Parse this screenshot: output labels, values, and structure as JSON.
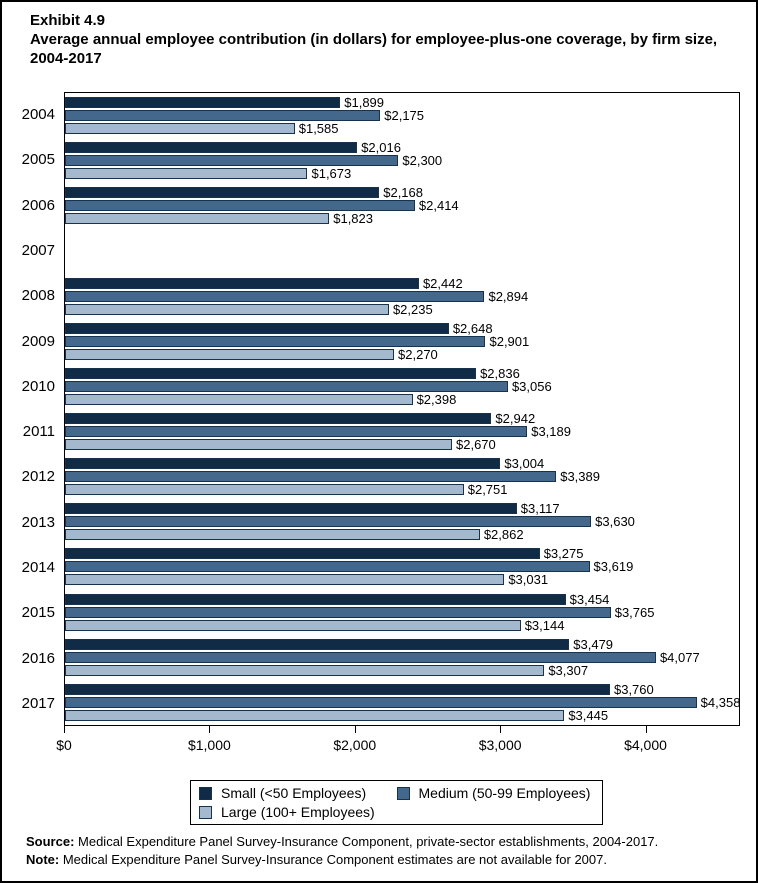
{
  "title": {
    "exhibit": "Exhibit 4.9",
    "text": "Average annual employee contribution (in dollars) for employee-plus-one coverage, by firm size, 2004-2017"
  },
  "chart_data": {
    "type": "bar",
    "orientation": "horizontal",
    "title": "Average annual employee contribution (in dollars) for employee-plus-one coverage, by firm size, 2004-2017",
    "categories": [
      "2004",
      "2005",
      "2006",
      "2007",
      "2008",
      "2009",
      "2010",
      "2011",
      "2012",
      "2013",
      "2014",
      "2015",
      "2016",
      "2017"
    ],
    "series": [
      {
        "name": "Small (<50 Employees)",
        "color": "#102b45",
        "values": [
          1899,
          2016,
          2168,
          null,
          2442,
          2648,
          2836,
          2942,
          3004,
          3117,
          3275,
          3454,
          3479,
          3760
        ]
      },
      {
        "name": "Medium (50-99 Employees)",
        "color": "#44688c",
        "values": [
          2175,
          2300,
          2414,
          null,
          2894,
          2901,
          3056,
          3189,
          3389,
          3630,
          3619,
          3765,
          4077,
          4358
        ]
      },
      {
        "name": "Large (100+ Employees)",
        "color": "#a4b9cd",
        "values": [
          1585,
          1673,
          1823,
          null,
          2235,
          2270,
          2398,
          2670,
          2751,
          2862,
          3031,
          3144,
          3307,
          3445
        ]
      }
    ],
    "bar_border_color": "#16324f",
    "x_ticks": [
      {
        "value": 0,
        "label": "$0"
      },
      {
        "value": 1000,
        "label": "$1,000"
      },
      {
        "value": 2000,
        "label": "$2,000"
      },
      {
        "value": 3000,
        "label": "$3,000"
      },
      {
        "value": 4000,
        "label": "$4,000"
      }
    ],
    "xlim": [
      0,
      4650
    ],
    "grid": false,
    "value_labels": true,
    "legend_position": "bottom",
    "missing_data_years": [
      "2007"
    ]
  },
  "footer": {
    "source_label": "Source:",
    "source_text": " Medical Expenditure Panel Survey-Insurance Component, private-sector establishments, 2004-2017.",
    "note_label": "Note:",
    "note_text": " Medical Expenditure Panel Survey-Insurance Component estimates are not available for 2007."
  }
}
